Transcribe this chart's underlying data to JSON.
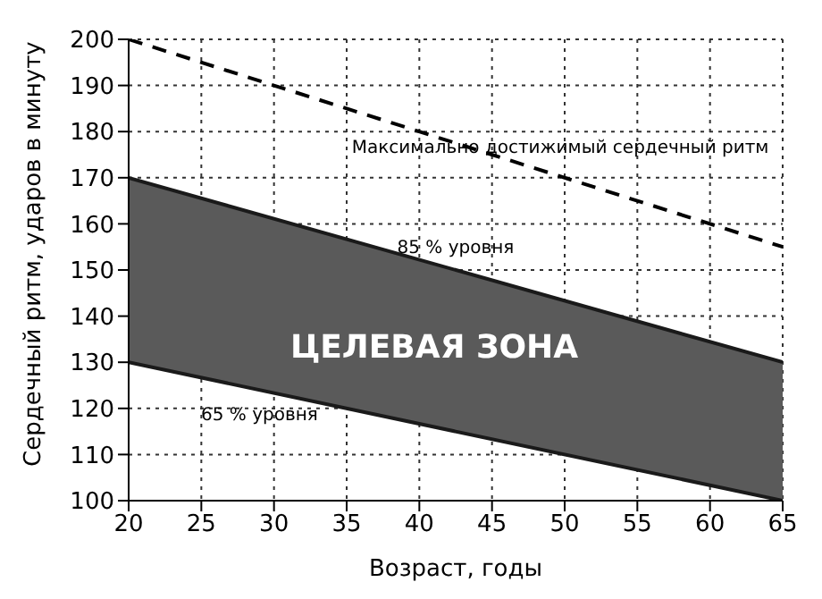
{
  "chart_data": {
    "type": "line",
    "xlabel": "Возраст, годы",
    "ylabel": "Сердечный ритм, ударов в минуту",
    "x": [
      20,
      65
    ],
    "series": [
      {
        "name": "Максимально достижимый сердечный ритм",
        "color": "#000000",
        "line_style": "dashed",
        "values": [
          200,
          155
        ]
      },
      {
        "name": "85 % уровня",
        "color": "#1a1a1a",
        "line_style": "solid",
        "values": [
          170,
          130
        ],
        "lower": [
          130,
          100
        ],
        "upper": [
          170,
          130
        ]
      },
      {
        "name": "65 % уровня",
        "color": "#1a1a1a",
        "line_style": "solid",
        "values": [
          130,
          100
        ]
      }
    ],
    "annotations": [
      "ЦЕЛЕВАЯ ЗОНА"
    ],
    "xlim": [
      20,
      65
    ],
    "xticks": [
      20,
      25,
      30,
      35,
      40,
      45,
      50,
      55,
      60,
      65
    ],
    "ylim": [
      100,
      200
    ],
    "yticks": [
      100,
      110,
      120,
      130,
      140,
      150,
      160,
      170,
      180,
      190,
      200
    ],
    "grid": true,
    "legend": false,
    "marker": "none"
  }
}
